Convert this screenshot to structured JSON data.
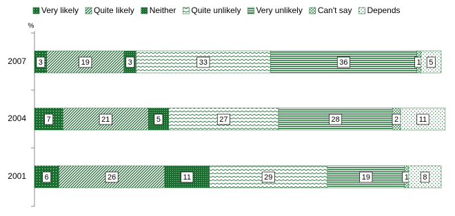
{
  "chart_data": {
    "type": "stacked-bar-horizontal",
    "y_unit_label": "%",
    "categories": [
      "2007",
      "2004",
      "2001"
    ],
    "xlim": [
      0,
      100
    ],
    "series": [
      {
        "name": "Very likely",
        "color": "#1b6e30",
        "values": [
          3,
          7,
          6
        ]
      },
      {
        "name": "Quite likely",
        "color": "#1b6e30",
        "values": [
          19,
          21,
          26
        ]
      },
      {
        "name": "Neither",
        "color": "#1b6e30",
        "values": [
          3,
          5,
          11
        ]
      },
      {
        "name": "Quite unlikely",
        "color": "#1b6e30",
        "values": [
          33,
          27,
          29
        ]
      },
      {
        "name": "Very unlikely",
        "color": "#1b6e30",
        "values": [
          36,
          28,
          19
        ]
      },
      {
        "name": "Can't say",
        "color": "#1b6e30",
        "values": [
          1,
          2,
          1
        ]
      },
      {
        "name": "Depends",
        "color": "#1b6e30",
        "values": [
          5,
          11,
          8
        ]
      }
    ]
  }
}
